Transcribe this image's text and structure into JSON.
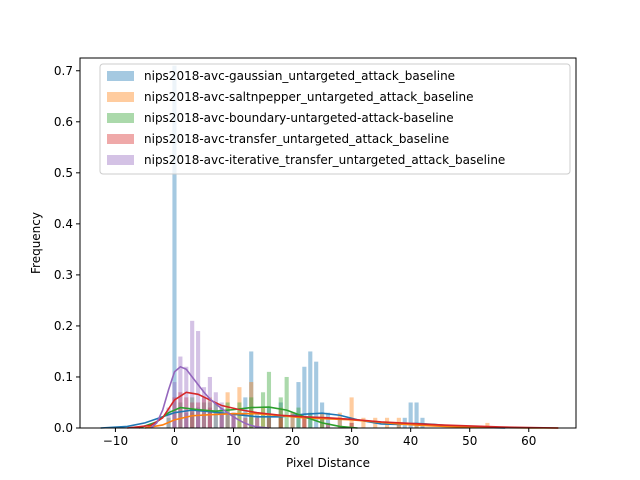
{
  "chart_data": {
    "type": "histogram",
    "title": "",
    "xlabel": "Pixel Distance",
    "ylabel": "Frequency",
    "xlim": [
      -16,
      68
    ],
    "ylim": [
      0,
      0.725
    ],
    "xticks": [
      -10,
      0,
      10,
      20,
      30,
      40,
      50,
      60
    ],
    "xtick_labels": [
      "−10",
      "0",
      "10",
      "20",
      "30",
      "40",
      "50",
      "60"
    ],
    "yticks": [
      0.0,
      0.1,
      0.2,
      0.3,
      0.4,
      0.5,
      0.6,
      0.7
    ],
    "ytick_labels": [
      "0.0",
      "0.1",
      "0.2",
      "0.3",
      "0.4",
      "0.5",
      "0.6",
      "0.7"
    ],
    "grid": false,
    "legend_position": "upper-right",
    "series": [
      {
        "name": "nips2018-avc-gaussian_untargeted_attack_baseline",
        "color": "#1f77b4",
        "bars": [
          [
            0,
            0.71
          ],
          [
            2,
            0.03
          ],
          [
            4,
            0.04
          ],
          [
            6,
            0.05
          ],
          [
            8,
            0.04
          ],
          [
            10,
            0.03
          ],
          [
            12,
            0.06
          ],
          [
            13,
            0.15
          ],
          [
            14,
            0.03
          ],
          [
            16,
            0.04
          ],
          [
            18,
            0.05
          ],
          [
            20,
            0.03
          ],
          [
            21,
            0.09
          ],
          [
            22,
            0.12
          ],
          [
            23,
            0.15
          ],
          [
            24,
            0.13
          ],
          [
            25,
            0.05
          ],
          [
            26,
            0.03
          ],
          [
            28,
            0.02
          ],
          [
            30,
            0.01
          ],
          [
            38,
            0.01
          ],
          [
            39,
            0.02
          ],
          [
            40,
            0.05
          ],
          [
            41,
            0.05
          ],
          [
            42,
            0.02
          ]
        ],
        "kde": [
          [
            -12.5,
            0.0
          ],
          [
            -8,
            0.003
          ],
          [
            -5,
            0.01
          ],
          [
            -2,
            0.022
          ],
          [
            0,
            0.03
          ],
          [
            3,
            0.035
          ],
          [
            6,
            0.032
          ],
          [
            10,
            0.027
          ],
          [
            14,
            0.022
          ],
          [
            18,
            0.022
          ],
          [
            22,
            0.027
          ],
          [
            25,
            0.029
          ],
          [
            28,
            0.025
          ],
          [
            31,
            0.016
          ],
          [
            35,
            0.008
          ],
          [
            38,
            0.007
          ],
          [
            41,
            0.009
          ],
          [
            44,
            0.007
          ],
          [
            48,
            0.003
          ],
          [
            52,
            0.001
          ],
          [
            56,
            0.0
          ]
        ]
      },
      {
        "name": "nips2018-avc-saltnpepper_untargeted_attack_baseline",
        "color": "#ff7f0e",
        "bars": [
          [
            3,
            0.03
          ],
          [
            6,
            0.06
          ],
          [
            9,
            0.07
          ],
          [
            11,
            0.08
          ],
          [
            13,
            0.09
          ],
          [
            15,
            0.04
          ],
          [
            18,
            0.04
          ],
          [
            20,
            0.03
          ],
          [
            22,
            0.02
          ],
          [
            25,
            0.03
          ],
          [
            28,
            0.03
          ],
          [
            30,
            0.06
          ],
          [
            32,
            0.02
          ],
          [
            34,
            0.02
          ],
          [
            36,
            0.02
          ],
          [
            38,
            0.02
          ],
          [
            41,
            0.01
          ],
          [
            53,
            0.01
          ]
        ],
        "kde": [
          [
            -5,
            0.0
          ],
          [
            -2,
            0.006
          ],
          [
            0,
            0.016
          ],
          [
            3,
            0.024
          ],
          [
            6,
            0.026
          ],
          [
            10,
            0.028
          ],
          [
            14,
            0.028
          ],
          [
            18,
            0.024
          ],
          [
            22,
            0.02
          ],
          [
            26,
            0.018
          ],
          [
            30,
            0.016
          ],
          [
            34,
            0.012
          ],
          [
            38,
            0.008
          ],
          [
            42,
            0.005
          ],
          [
            46,
            0.003
          ],
          [
            50,
            0.002
          ],
          [
            55,
            0.001
          ],
          [
            60,
            0.0
          ],
          [
            65,
            0.0
          ]
        ]
      },
      {
        "name": "nips2018-avc-boundary-untargeted-attack-baseline",
        "color": "#2ca02c",
        "bars": [
          [
            -1,
            0.02
          ],
          [
            1,
            0.05
          ],
          [
            3,
            0.06
          ],
          [
            5,
            0.05
          ],
          [
            7,
            0.05
          ],
          [
            9,
            0.05
          ],
          [
            11,
            0.05
          ],
          [
            13,
            0.06
          ],
          [
            15,
            0.07
          ],
          [
            16,
            0.11
          ],
          [
            18,
            0.06
          ],
          [
            19,
            0.1
          ],
          [
            21,
            0.04
          ],
          [
            23,
            0.03
          ],
          [
            25,
            0.02
          ]
        ],
        "kde": [
          [
            -6,
            0.0
          ],
          [
            -3,
            0.012
          ],
          [
            -1,
            0.03
          ],
          [
            1,
            0.04
          ],
          [
            4,
            0.036
          ],
          [
            7,
            0.033
          ],
          [
            10,
            0.036
          ],
          [
            13,
            0.04
          ],
          [
            16,
            0.041
          ],
          [
            19,
            0.035
          ],
          [
            22,
            0.022
          ],
          [
            25,
            0.01
          ],
          [
            28,
            0.003
          ],
          [
            31,
            0.0
          ]
        ]
      },
      {
        "name": "nips2018-avc-transfer_untargeted_attack_baseline",
        "color": "#d62728",
        "bars": [
          [
            0,
            0.06
          ],
          [
            1,
            0.07
          ],
          [
            2,
            0.06
          ],
          [
            3,
            0.05
          ],
          [
            4,
            0.05
          ],
          [
            5,
            0.06
          ],
          [
            6,
            0.04
          ],
          [
            8,
            0.03
          ],
          [
            10,
            0.03
          ],
          [
            12,
            0.02
          ],
          [
            14,
            0.02
          ],
          [
            16,
            0.02
          ],
          [
            18,
            0.02
          ],
          [
            22,
            0.02
          ],
          [
            26,
            0.01
          ],
          [
            30,
            0.01
          ]
        ],
        "kde": [
          [
            -8,
            0.0
          ],
          [
            -4,
            0.005
          ],
          [
            -2,
            0.02
          ],
          [
            0,
            0.055
          ],
          [
            2,
            0.07
          ],
          [
            4,
            0.066
          ],
          [
            6,
            0.055
          ],
          [
            8,
            0.044
          ],
          [
            11,
            0.036
          ],
          [
            14,
            0.03
          ],
          [
            18,
            0.025
          ],
          [
            22,
            0.022
          ],
          [
            26,
            0.02
          ],
          [
            30,
            0.017
          ],
          [
            35,
            0.012
          ],
          [
            40,
            0.009
          ],
          [
            45,
            0.006
          ],
          [
            50,
            0.004
          ],
          [
            55,
            0.002
          ],
          [
            60,
            0.001
          ],
          [
            65,
            0.0
          ]
        ]
      },
      {
        "name": "nips2018-avc-iterative_transfer_untargeted_attack_baseline",
        "color": "#9467bd",
        "bars": [
          [
            -1,
            0.04
          ],
          [
            0,
            0.09
          ],
          [
            1,
            0.14
          ],
          [
            2,
            0.12
          ],
          [
            3,
            0.21
          ],
          [
            4,
            0.19
          ],
          [
            5,
            0.08
          ],
          [
            6,
            0.1
          ],
          [
            7,
            0.07
          ],
          [
            8,
            0.05
          ],
          [
            9,
            0.03
          ],
          [
            10,
            0.02
          ]
        ],
        "kde": [
          [
            -4,
            0.0
          ],
          [
            -3,
            0.01
          ],
          [
            -2,
            0.035
          ],
          [
            -1,
            0.075
          ],
          [
            0,
            0.11
          ],
          [
            1,
            0.12
          ],
          [
            2,
            0.115
          ],
          [
            3,
            0.1
          ],
          [
            4,
            0.085
          ],
          [
            5,
            0.07
          ],
          [
            6,
            0.057
          ],
          [
            7,
            0.047
          ],
          [
            8,
            0.038
          ],
          [
            9,
            0.03
          ],
          [
            10,
            0.022
          ],
          [
            11,
            0.015
          ],
          [
            12,
            0.009
          ],
          [
            13,
            0.005
          ],
          [
            14,
            0.002
          ],
          [
            16,
            0.0
          ]
        ]
      }
    ]
  }
}
